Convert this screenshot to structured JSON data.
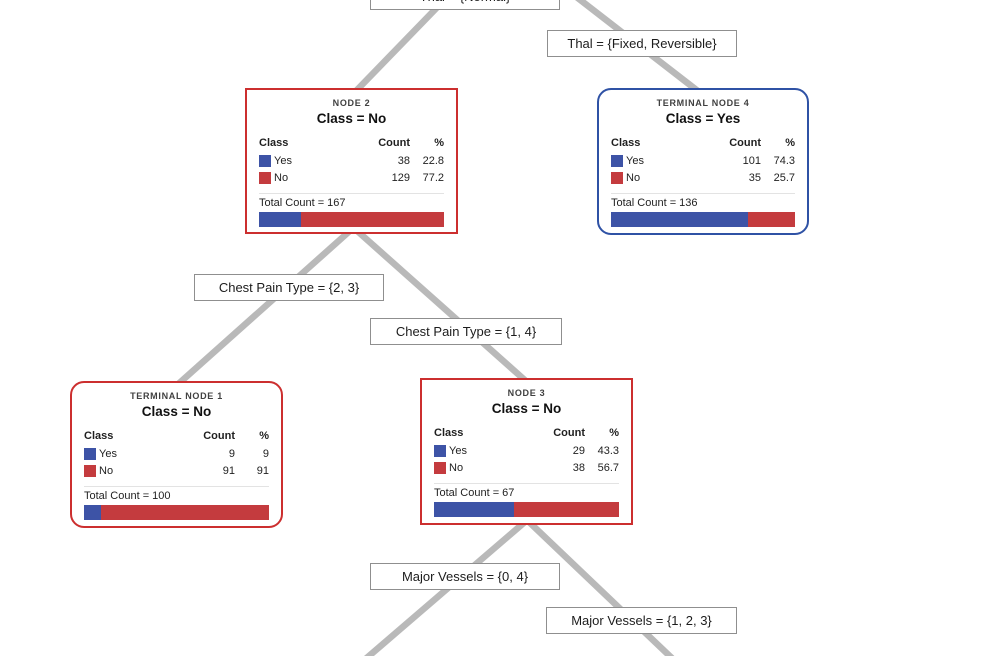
{
  "colors": {
    "yes_blue": "#3D53A6",
    "no_red": "#C43B3E",
    "internal_border_red": "#CC2F2F",
    "terminal_border_blue": "#2F52A5",
    "edge_line_gray": "#B9B9B9",
    "label_border_gray": "#8F8F8F"
  },
  "legend": {
    "class_header": "Class",
    "count_header": "Count",
    "pct_header": "%"
  },
  "edge_labels": {
    "thal_normal": "Thal = {Normal}",
    "thal_fixed_reversible": "Thal = {Fixed, Reversible}",
    "chest_pain_2_3": "Chest Pain Type = {2, 3}",
    "chest_pain_1_4": "Chest Pain Type = {1, 4}",
    "major_vessels_0_4": "Major Vessels = {0, 4}",
    "major_vessels_1_2_3": "Major Vessels = {1, 2, 3}"
  },
  "nodes": [
    {
      "title": "NODE 2",
      "class_label": "Class = No",
      "rows": [
        {
          "name": "Yes",
          "count": "38",
          "pct": "22.8"
        },
        {
          "name": "No",
          "count": "129",
          "pct": "77.2"
        }
      ],
      "total": "Total Count = 167",
      "bar": {
        "yes_pct": 22.8,
        "no_pct": 77.2
      }
    },
    {
      "title": "TERMINAL NODE 4",
      "class_label": "Class = Yes",
      "rows": [
        {
          "name": "Yes",
          "count": "101",
          "pct": "74.3"
        },
        {
          "name": "No",
          "count": "35",
          "pct": "25.7"
        }
      ],
      "total": "Total Count = 136",
      "bar": {
        "yes_pct": 74.3,
        "no_pct": 25.7
      }
    },
    {
      "title": "TERMINAL NODE 1",
      "class_label": "Class = No",
      "rows": [
        {
          "name": "Yes",
          "count": "9",
          "pct": "9"
        },
        {
          "name": "No",
          "count": "91",
          "pct": "91"
        }
      ],
      "total": "Total Count = 100",
      "bar": {
        "yes_pct": 9,
        "no_pct": 91
      }
    },
    {
      "title": "NODE 3",
      "class_label": "Class = No",
      "rows": [
        {
          "name": "Yes",
          "count": "29",
          "pct": "43.3"
        },
        {
          "name": "No",
          "count": "38",
          "pct": "56.7"
        }
      ],
      "total": "Total Count = 67",
      "bar": {
        "yes_pct": 43.3,
        "no_pct": 56.7
      }
    }
  ]
}
